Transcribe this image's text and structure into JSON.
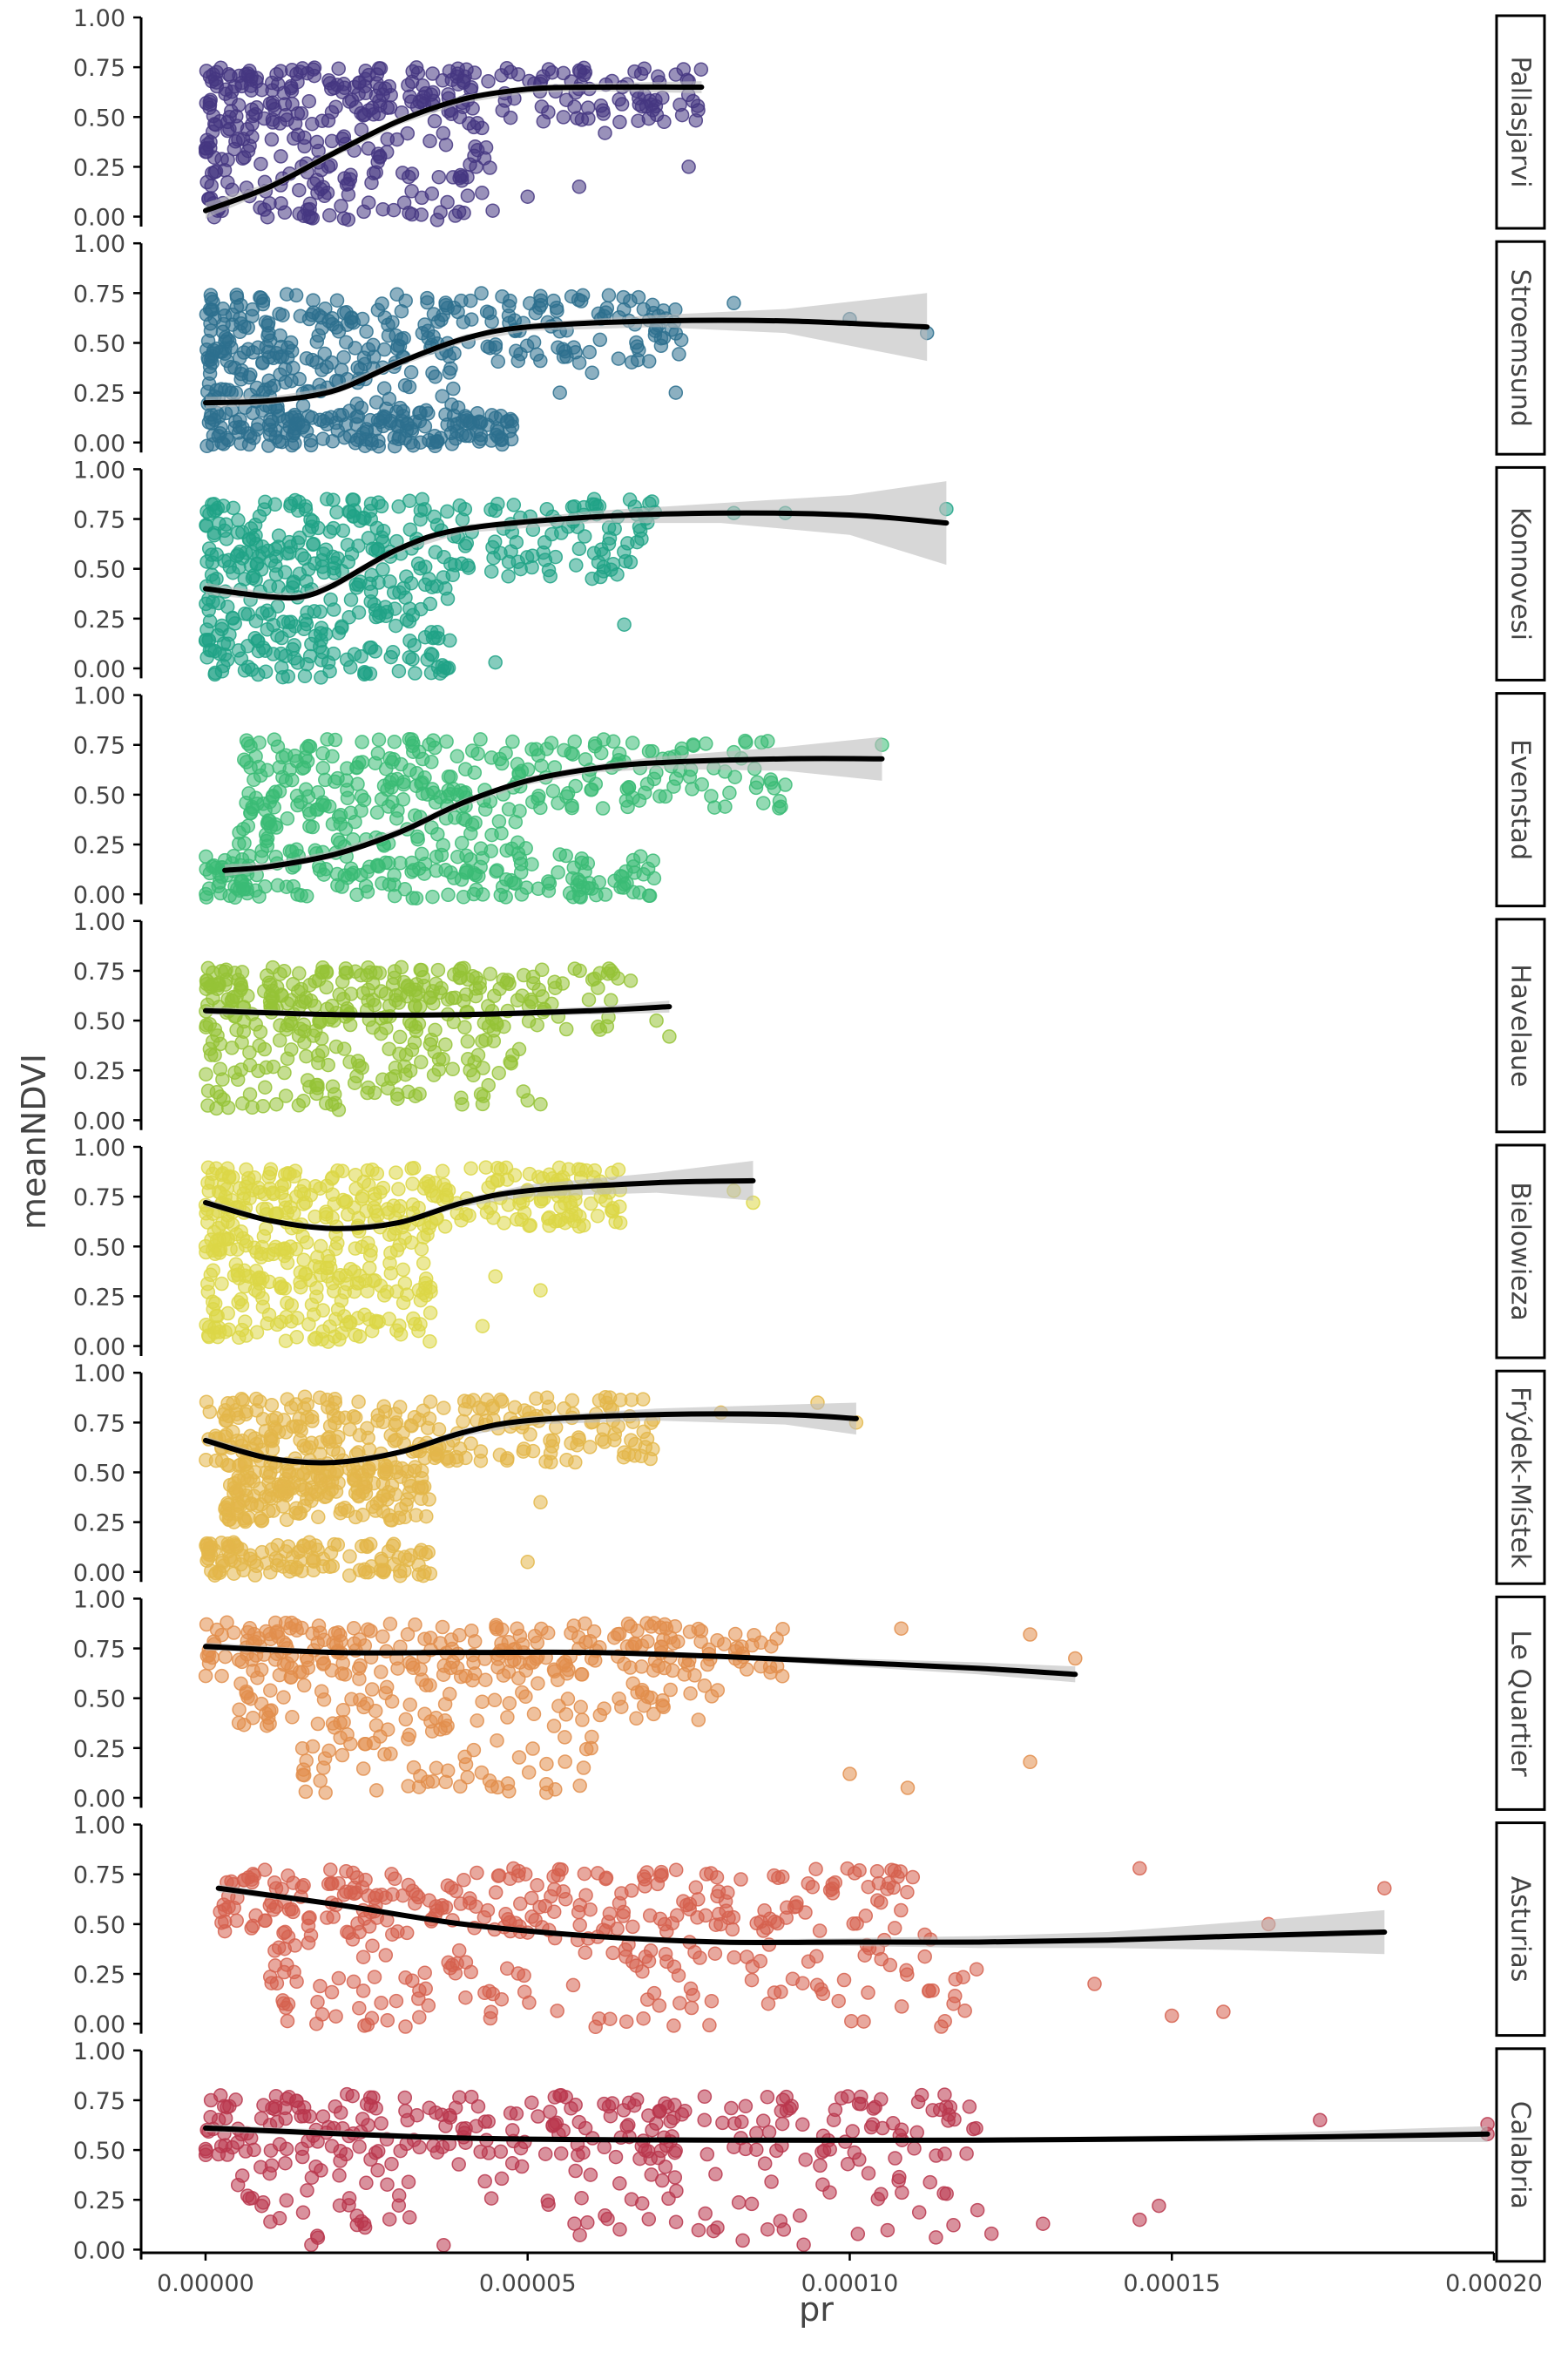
{
  "chart_data": {
    "type": "scatter",
    "xlabel": "pr",
    "ylabel": "meanNDVI",
    "xlim": [
      -1e-05,
      0.0002
    ],
    "ylim": [
      -0.05,
      1.0
    ],
    "x_ticks": [
      0.0,
      5e-05,
      0.0001,
      0.00015,
      0.0002
    ],
    "x_tick_labels": [
      "0.00000",
      "0.00005",
      "0.00010",
      "0.00015",
      "0.00020"
    ],
    "y_ticks": [
      0.0,
      0.25,
      0.5,
      0.75,
      1.0
    ],
    "y_tick_labels": [
      "0.00",
      "0.25",
      "0.50",
      "0.75",
      "1.00"
    ],
    "grid": false,
    "legend": "none",
    "smooth_line_color": "#000000",
    "ribbon_color": "#bdbdbd",
    "panels": [
      {
        "name": "Pallasjarvi",
        "color": "#453781",
        "x_range": [
          0.0,
          7.7e-05
        ],
        "clusters": [
          {
            "x": [
              0.0,
              7.7e-05
            ],
            "y": [
              0.45,
              0.75
            ],
            "density": 1.0
          },
          {
            "x": [
              0.0,
              4.5e-05
            ],
            "y": [
              -0.02,
              0.45
            ],
            "density": 0.6
          }
        ],
        "outliers": [
          [
            6.2e-05,
            0.42
          ],
          [
            7.5e-05,
            0.25
          ],
          [
            5e-05,
            0.1
          ],
          [
            5.8e-05,
            0.15
          ],
          [
            4.2e-05,
            0.25
          ],
          [
            7.5e-05,
            0.68
          ]
        ],
        "smooth": [
          [
            0.0,
            0.03
          ],
          [
            1e-05,
            0.15
          ],
          [
            2e-05,
            0.32
          ],
          [
            3e-05,
            0.48
          ],
          [
            4e-05,
            0.59
          ],
          [
            5e-05,
            0.64
          ],
          [
            6e-05,
            0.65
          ],
          [
            7.7e-05,
            0.65
          ]
        ],
        "se": [
          0.04,
          0.02,
          0.02,
          0.02,
          0.02,
          0.02,
          0.02,
          0.03
        ]
      },
      {
        "name": "Stroemsund",
        "color": "#2d708e",
        "x_range": [
          0.0,
          0.000112
        ],
        "clusters": [
          {
            "x": [
              0.0,
              7.5e-05
            ],
            "y": [
              0.4,
              0.75
            ],
            "density": 1.0
          },
          {
            "x": [
              0.0,
              4.8e-05
            ],
            "y": [
              -0.02,
              0.15
            ],
            "density": 0.7
          },
          {
            "x": [
              0.0,
              4e-05
            ],
            "y": [
              0.15,
              0.4
            ],
            "density": 0.35
          }
        ],
        "outliers": [
          [
            8.2e-05,
            0.7
          ],
          [
            0.0001,
            0.62
          ],
          [
            0.000112,
            0.55
          ],
          [
            7.3e-05,
            0.25
          ],
          [
            5.5e-05,
            0.25
          ],
          [
            6e-05,
            0.35
          ]
        ],
        "smooth": [
          [
            0.0,
            0.2
          ],
          [
            1e-05,
            0.21
          ],
          [
            2e-05,
            0.26
          ],
          [
            3e-05,
            0.4
          ],
          [
            4e-05,
            0.52
          ],
          [
            5e-05,
            0.58
          ],
          [
            7e-05,
            0.61
          ],
          [
            9e-05,
            0.61
          ],
          [
            0.000112,
            0.58
          ]
        ],
        "se": [
          0.03,
          0.02,
          0.02,
          0.02,
          0.02,
          0.02,
          0.03,
          0.06,
          0.17
        ]
      },
      {
        "name": "Konnovesi",
        "color": "#20a386",
        "x_range": [
          0.0,
          0.000115
        ],
        "clusters": [
          {
            "x": [
              0.0,
              7e-05
            ],
            "y": [
              0.45,
              0.85
            ],
            "density": 1.0
          },
          {
            "x": [
              0.0,
              3.8e-05
            ],
            "y": [
              -0.05,
              0.45
            ],
            "density": 0.75
          }
        ],
        "outliers": [
          [
            0.000115,
            0.8
          ],
          [
            8.2e-05,
            0.78
          ],
          [
            9e-05,
            0.78
          ],
          [
            6.5e-05,
            0.22
          ],
          [
            4.5e-05,
            0.03
          ],
          [
            5.8e-05,
            0.6
          ],
          [
            6e-05,
            0.45
          ]
        ],
        "smooth": [
          [
            0.0,
            0.4
          ],
          [
            1e-05,
            0.36
          ],
          [
            1.5e-05,
            0.36
          ],
          [
            2e-05,
            0.42
          ],
          [
            3e-05,
            0.6
          ],
          [
            4e-05,
            0.7
          ],
          [
            6e-05,
            0.76
          ],
          [
            8e-05,
            0.78
          ],
          [
            0.0001,
            0.77
          ],
          [
            0.000115,
            0.73
          ]
        ],
        "se": [
          0.03,
          0.02,
          0.02,
          0.02,
          0.02,
          0.02,
          0.03,
          0.05,
          0.1,
          0.21
        ]
      },
      {
        "name": "Evenstad",
        "color": "#3bbb75",
        "x_range": [
          3e-06,
          0.000105
        ],
        "clusters": [
          {
            "x": [
              6e-06,
              9e-05
            ],
            "y": [
              0.42,
              0.78
            ],
            "density": 1.0
          },
          {
            "x": [
              0.0,
              7e-05
            ],
            "y": [
              -0.02,
              0.2
            ],
            "density": 0.7
          },
          {
            "x": [
              5e-06,
              5e-05
            ],
            "y": [
              0.2,
              0.42
            ],
            "density": 0.3
          }
        ],
        "outliers": [
          [
            0.000105,
            0.75
          ],
          [
            9e-05,
            0.55
          ],
          [
            6.8e-05,
            0.1
          ],
          [
            6.5e-05,
            0.05
          ],
          [
            5.5e-05,
            0.2
          ]
        ],
        "smooth": [
          [
            3e-06,
            0.12
          ],
          [
            1e-05,
            0.14
          ],
          [
            2e-05,
            0.2
          ],
          [
            3e-05,
            0.31
          ],
          [
            4e-05,
            0.46
          ],
          [
            5e-05,
            0.57
          ],
          [
            6e-05,
            0.63
          ],
          [
            7e-05,
            0.66
          ],
          [
            9e-05,
            0.68
          ],
          [
            0.000105,
            0.68
          ]
        ],
        "se": [
          0.03,
          0.02,
          0.02,
          0.02,
          0.02,
          0.02,
          0.02,
          0.03,
          0.06,
          0.11
        ]
      },
      {
        "name": "Havelaue",
        "color": "#95c337",
        "x_range": [
          0.0,
          7.2e-05
        ],
        "clusters": [
          {
            "x": [
              0.0,
              6.5e-05
            ],
            "y": [
              0.45,
              0.77
            ],
            "density": 1.0
          },
          {
            "x": [
              0.0,
              5e-05
            ],
            "y": [
              0.05,
              0.45
            ],
            "density": 0.5
          }
        ],
        "outliers": [
          [
            7.2e-05,
            0.42
          ],
          [
            7e-05,
            0.5
          ],
          [
            5e-05,
            0.1
          ],
          [
            5.2e-05,
            0.08
          ],
          [
            6.6e-05,
            0.7
          ]
        ],
        "smooth": [
          [
            0.0,
            0.55
          ],
          [
            2e-05,
            0.53
          ],
          [
            4e-05,
            0.53
          ],
          [
            6e-05,
            0.55
          ],
          [
            7.2e-05,
            0.57
          ]
        ],
        "se": [
          0.02,
          0.01,
          0.01,
          0.02,
          0.03
        ]
      },
      {
        "name": "Bielowieza",
        "color": "#dcd747",
        "x_range": [
          0.0,
          8.5e-05
        ],
        "clusters": [
          {
            "x": [
              0.0,
              6.5e-05
            ],
            "y": [
              0.6,
              0.9
            ],
            "density": 1.0
          },
          {
            "x": [
              0.0,
              3.5e-05
            ],
            "y": [
              0.02,
              0.6
            ],
            "density": 0.9
          }
        ],
        "outliers": [
          [
            8.5e-05,
            0.72
          ],
          [
            8.2e-05,
            0.78
          ],
          [
            5.2e-05,
            0.28
          ],
          [
            4.3e-05,
            0.1
          ],
          [
            5.8e-05,
            0.6
          ],
          [
            4.5e-05,
            0.35
          ]
        ],
        "smooth": [
          [
            0.0,
            0.72
          ],
          [
            1e-05,
            0.63
          ],
          [
            2e-05,
            0.59
          ],
          [
            3e-05,
            0.62
          ],
          [
            4e-05,
            0.72
          ],
          [
            5e-05,
            0.78
          ],
          [
            7e-05,
            0.82
          ],
          [
            8.5e-05,
            0.83
          ]
        ],
        "se": [
          0.02,
          0.01,
          0.01,
          0.01,
          0.02,
          0.03,
          0.05,
          0.1
        ]
      },
      {
        "name": "Frýdek-Místek",
        "color": "#e3b74a",
        "x_range": [
          0.0,
          0.000101
        ],
        "clusters": [
          {
            "x": [
              0.0,
              7e-05
            ],
            "y": [
              0.55,
              0.88
            ],
            "density": 1.0
          },
          {
            "x": [
              3e-06,
              3.5e-05
            ],
            "y": [
              0.25,
              0.55
            ],
            "density": 0.8
          },
          {
            "x": [
              0.0,
              3.5e-05
            ],
            "y": [
              -0.02,
              0.15
            ],
            "density": 0.45
          }
        ],
        "outliers": [
          [
            0.000101,
            0.75
          ],
          [
            9.5e-05,
            0.85
          ],
          [
            5e-05,
            0.05
          ],
          [
            5.2e-05,
            0.35
          ],
          [
            6.5e-05,
            0.6
          ],
          [
            8e-05,
            0.8
          ]
        ],
        "smooth": [
          [
            0.0,
            0.66
          ],
          [
            1e-05,
            0.57
          ],
          [
            2e-05,
            0.55
          ],
          [
            3e-05,
            0.6
          ],
          [
            4e-05,
            0.7
          ],
          [
            5e-05,
            0.76
          ],
          [
            7e-05,
            0.79
          ],
          [
            9e-05,
            0.79
          ],
          [
            0.000101,
            0.77
          ]
        ],
        "se": [
          0.02,
          0.01,
          0.01,
          0.01,
          0.02,
          0.02,
          0.03,
          0.05,
          0.08
        ]
      },
      {
        "name": "Le Quartier",
        "color": "#e28e4c",
        "x_range": [
          0.0,
          0.000135
        ],
        "clusters": [
          {
            "x": [
              0.0,
              9e-05
            ],
            "y": [
              0.6,
              0.88
            ],
            "density": 1.0
          },
          {
            "x": [
              5e-06,
              8e-05
            ],
            "y": [
              0.35,
              0.6
            ],
            "density": 0.35
          },
          {
            "x": [
              1.5e-05,
              6e-05
            ],
            "y": [
              0.02,
              0.35
            ],
            "density": 0.25
          }
        ],
        "outliers": [
          [
            0.000128,
            0.18
          ],
          [
            0.000109,
            0.05
          ],
          [
            0.0001,
            0.12
          ],
          [
            0.000108,
            0.85
          ],
          [
            0.000128,
            0.82
          ],
          [
            0.000135,
            0.7
          ]
        ],
        "smooth": [
          [
            0.0,
            0.76
          ],
          [
            2e-05,
            0.73
          ],
          [
            4e-05,
            0.73
          ],
          [
            6e-05,
            0.73
          ],
          [
            8e-05,
            0.71
          ],
          [
            0.0001,
            0.68
          ],
          [
            0.00012,
            0.65
          ],
          [
            0.000135,
            0.62
          ]
        ],
        "se": [
          0.02,
          0.01,
          0.01,
          0.01,
          0.01,
          0.02,
          0.03,
          0.04
        ]
      },
      {
        "name": "Asturias",
        "color": "#d6614f",
        "x_range": [
          2e-06,
          0.000183
        ],
        "clusters": [
          {
            "x": [
              2e-06,
              0.00011
            ],
            "y": [
              0.45,
              0.78
            ],
            "density": 1.0
          },
          {
            "x": [
              1e-05,
              0.00012
            ],
            "y": [
              -0.02,
              0.45
            ],
            "density": 0.6
          }
        ],
        "outliers": [
          [
            0.000183,
            0.68
          ],
          [
            0.000165,
            0.5
          ],
          [
            0.000158,
            0.06
          ],
          [
            0.00015,
            0.04
          ],
          [
            0.000145,
            0.78
          ],
          [
            0.000138,
            0.2
          ]
        ],
        "smooth": [
          [
            2e-06,
            0.68
          ],
          [
            2e-05,
            0.6
          ],
          [
            4e-05,
            0.5
          ],
          [
            6e-05,
            0.44
          ],
          [
            8e-05,
            0.41
          ],
          [
            0.0001,
            0.41
          ],
          [
            0.00012,
            0.41
          ],
          [
            0.00014,
            0.42
          ],
          [
            0.00016,
            0.44
          ],
          [
            0.000183,
            0.46
          ]
        ],
        "se": [
          0.02,
          0.01,
          0.01,
          0.01,
          0.01,
          0.02,
          0.03,
          0.04,
          0.07,
          0.11
        ]
      },
      {
        "name": "Calabria",
        "color": "#b9374d",
        "x_range": [
          0.0,
          0.000199
        ],
        "clusters": [
          {
            "x": [
              0.0,
              0.00012
            ],
            "y": [
              0.45,
              0.78
            ],
            "density": 1.0
          },
          {
            "x": [
              5e-06,
              0.00012
            ],
            "y": [
              0.02,
              0.45
            ],
            "density": 0.4
          }
        ],
        "outliers": [
          [
            0.000199,
            0.63
          ],
          [
            0.000199,
            0.58
          ],
          [
            0.000173,
            0.65
          ],
          [
            0.000148,
            0.22
          ],
          [
            0.000145,
            0.15
          ],
          [
            0.00013,
            0.13
          ],
          [
            0.000122,
            0.08
          ]
        ],
        "smooth": [
          [
            0.0,
            0.61
          ],
          [
            4e-05,
            0.56
          ],
          [
            8e-05,
            0.55
          ],
          [
            0.00012,
            0.55
          ],
          [
            0.00016,
            0.56
          ],
          [
            0.000199,
            0.58
          ]
        ],
        "se": [
          0.02,
          0.01,
          0.01,
          0.01,
          0.02,
          0.04
        ]
      }
    ]
  }
}
